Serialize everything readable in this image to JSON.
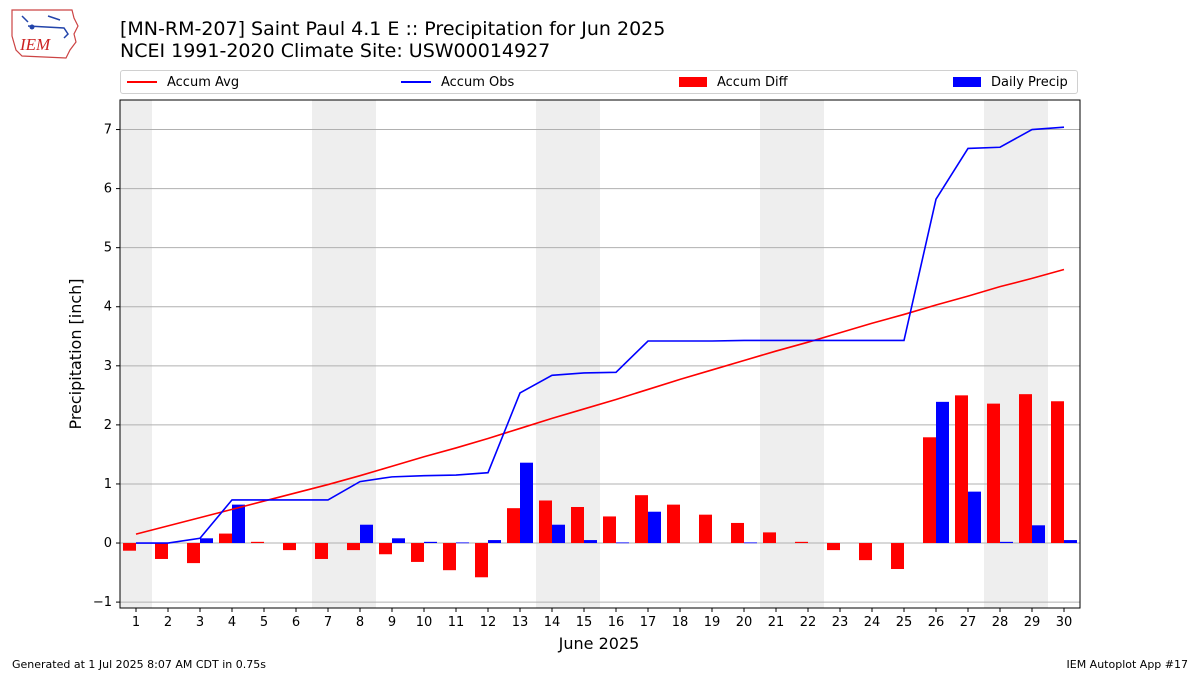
{
  "header": {
    "logo_text": "IEM",
    "title_line1": "[MN-RM-207] Saint Paul 4.1 E :: Precipitation for Jun 2025",
    "title_line2": "NCEI 1991-2020 Climate Site: USW00014927"
  },
  "footer": {
    "left": "Generated at 1 Jul 2025 8:07 AM CDT in 0.75s",
    "right": "IEM Autoplot App #17"
  },
  "chart_data": {
    "type": "bar",
    "xlabel": "June 2025",
    "ylabel": "Precipitation [inch]",
    "ylim": [
      -1.1,
      7.5
    ],
    "yticks": [
      -1,
      0,
      1,
      2,
      3,
      4,
      5,
      6,
      7
    ],
    "grid": "horizontal",
    "legend_placement": "top",
    "weekend_shading_color": "#eeeeee",
    "categories": [
      "1",
      "2",
      "3",
      "4",
      "5",
      "6",
      "7",
      "8",
      "9",
      "10",
      "11",
      "12",
      "13",
      "14",
      "15",
      "16",
      "17",
      "18",
      "19",
      "20",
      "21",
      "22",
      "23",
      "24",
      "25",
      "26",
      "27",
      "28",
      "29",
      "30"
    ],
    "series": [
      {
        "name": "Accum Avg",
        "kind": "line",
        "color": "#ff0000",
        "values": [
          0.15,
          0.29,
          0.43,
          0.57,
          0.71,
          0.85,
          0.99,
          1.14,
          1.3,
          1.46,
          1.61,
          1.77,
          1.94,
          2.11,
          2.27,
          2.43,
          2.6,
          2.77,
          2.93,
          3.09,
          3.25,
          3.4,
          3.56,
          3.72,
          3.87,
          4.03,
          4.18,
          4.34,
          4.48,
          4.63
        ]
      },
      {
        "name": "Accum Obs",
        "kind": "line",
        "color": "#0000ff",
        "values": [
          0.0,
          0.0,
          0.08,
          0.73,
          0.73,
          0.73,
          0.73,
          1.04,
          1.12,
          1.14,
          1.15,
          1.19,
          2.54,
          2.84,
          2.88,
          2.89,
          3.42,
          3.42,
          3.42,
          3.43,
          3.43,
          3.43,
          3.43,
          3.43,
          3.43,
          5.82,
          6.68,
          6.7,
          7.0,
          7.04
        ]
      },
      {
        "name": "Accum Diff",
        "kind": "bar",
        "color": "#ff0000",
        "values": [
          -0.13,
          -0.27,
          -0.34,
          0.16,
          0.02,
          -0.12,
          -0.27,
          -0.12,
          -0.19,
          -0.32,
          -0.46,
          -0.58,
          0.59,
          0.72,
          0.61,
          0.45,
          0.81,
          0.65,
          0.48,
          0.34,
          0.18,
          0.02,
          -0.12,
          -0.29,
          -0.44,
          1.79,
          2.5,
          2.36,
          2.52,
          2.4
        ]
      },
      {
        "name": "Daily Precip",
        "kind": "bar",
        "color": "#0000ff",
        "values": [
          0.0,
          0.0,
          0.08,
          0.65,
          0.0,
          0.0,
          0.0,
          0.31,
          0.08,
          0.02,
          0.01,
          0.05,
          1.36,
          0.31,
          0.05,
          0.01,
          0.53,
          0.0,
          0.0,
          0.01,
          0.0,
          0.0,
          0.0,
          0.0,
          0.0,
          2.39,
          0.87,
          0.02,
          0.3,
          0.05
        ]
      }
    ],
    "weekend_days": [
      1,
      7,
      8,
      14,
      15,
      21,
      22,
      28,
      29
    ]
  }
}
